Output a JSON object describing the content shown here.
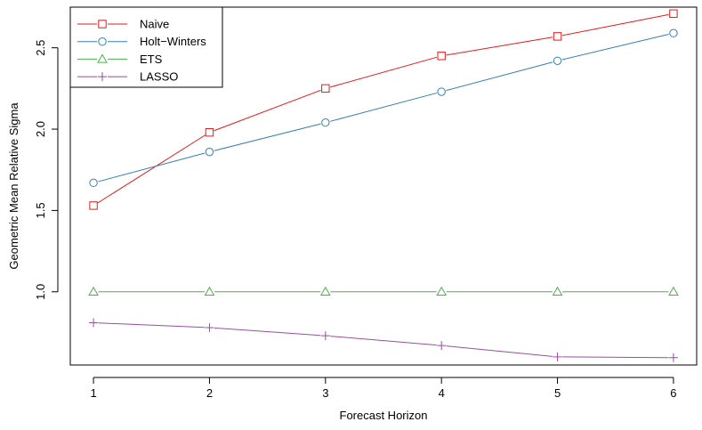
{
  "chart_data": {
    "type": "line",
    "title": "",
    "xlabel": "Forecast Horizon",
    "ylabel": "Geometric Mean Relative Sigma",
    "x": [
      1,
      2,
      3,
      4,
      5,
      6
    ],
    "x_ticks": [
      "1",
      "2",
      "3",
      "4",
      "5",
      "6"
    ],
    "y_ticks": [
      "1.0",
      "1.5",
      "2.0",
      "2.5"
    ],
    "y_tick_values": [
      1.0,
      1.5,
      2.0,
      2.5
    ],
    "xlim": [
      0.8,
      6.2
    ],
    "ylim": [
      0.55,
      2.75
    ],
    "grid": false,
    "legend_position": "top-left",
    "series": [
      {
        "name": "Naive",
        "color": "#e41a1c",
        "marker": "square",
        "values": [
          1.53,
          1.98,
          2.25,
          2.45,
          2.57,
          2.71
        ]
      },
      {
        "name": "Holt−Winters",
        "color": "#377eb8",
        "marker": "circle",
        "values": [
          1.67,
          1.86,
          2.04,
          2.23,
          2.42,
          2.59
        ]
      },
      {
        "name": "ETS",
        "color": "#4daf4a",
        "marker": "triangle",
        "values": [
          1.0,
          1.0,
          1.0,
          1.0,
          1.0,
          1.0
        ]
      },
      {
        "name": "LASSO",
        "color": "#984ea3",
        "marker": "plus",
        "values": [
          0.81,
          0.78,
          0.73,
          0.67,
          0.6,
          0.595
        ]
      }
    ]
  }
}
